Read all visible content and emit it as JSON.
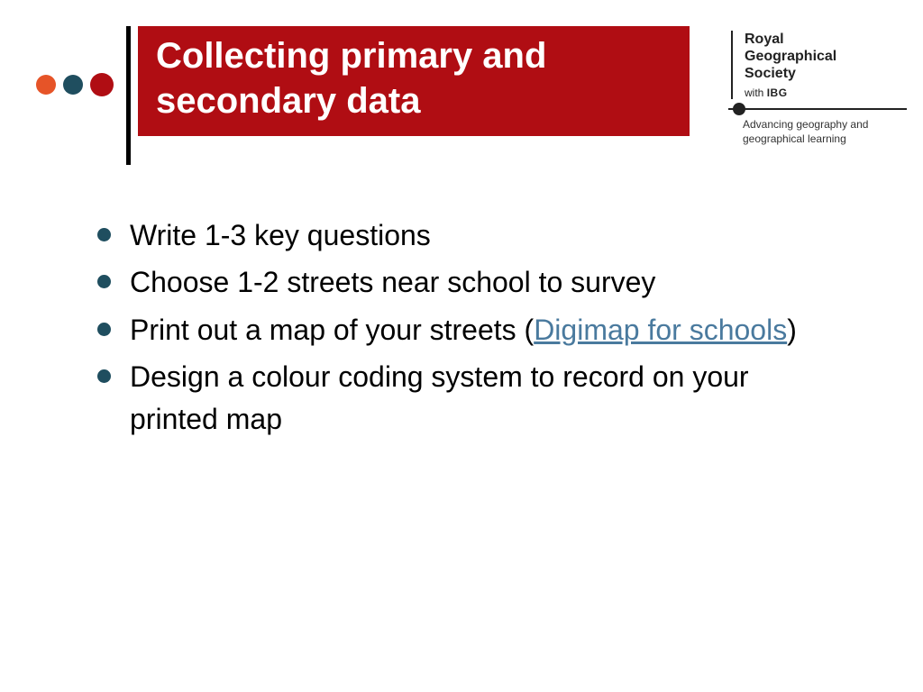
{
  "colors": {
    "title_bg": "#b00d13",
    "title_text": "#ffffff",
    "dot_orange": "#e65428",
    "dot_teal": "#1f4e5f",
    "dot_red": "#b00d13",
    "bullet": "#1f4e5f",
    "body_text": "#000000",
    "link": "#4a7a9e"
  },
  "title": "Collecting primary and secondary data",
  "logo": {
    "name_line1": "Royal",
    "name_line2": "Geographical",
    "name_line3": "Society",
    "with_text": "with",
    "ibg_text": "IBG",
    "tagline": "Advancing geography and geographical learning"
  },
  "bullets": [
    {
      "text": "Write 1-3 key questions"
    },
    {
      "text": "Choose 1-2 streets near school to survey"
    },
    {
      "prefix": "Print out a map of your streets (",
      "link": "Digimap for schools",
      "suffix": ")"
    },
    {
      "text": "Design a colour coding system to record on your printed map"
    }
  ]
}
